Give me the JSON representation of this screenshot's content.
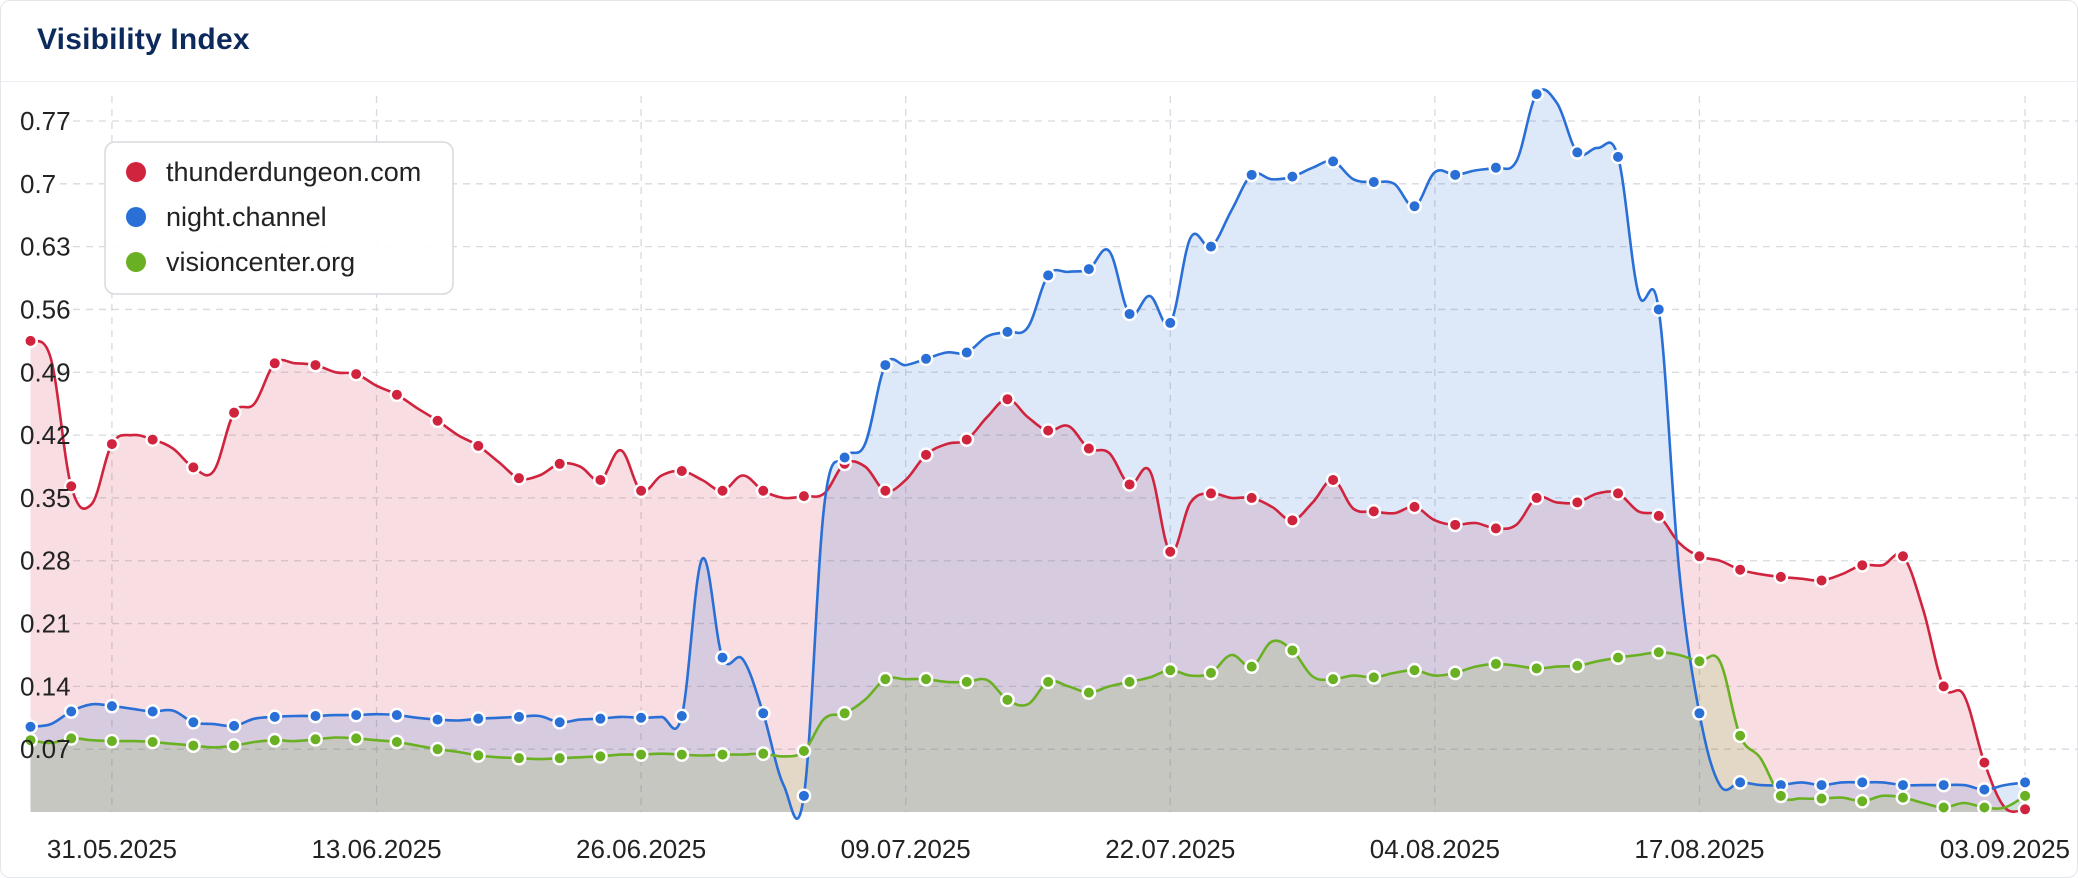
{
  "header": {
    "title": "Visibility Index"
  },
  "chart_data": {
    "type": "area",
    "title": "Visibility Index",
    "x_tick_labels": [
      "31.05.2025",
      "13.06.2025",
      "26.06.2025",
      "09.07.2025",
      "22.07.2025",
      "04.08.2025",
      "17.08.2025",
      "03.09.2025"
    ],
    "x_tick_index": [
      4,
      17,
      30,
      43,
      56,
      69,
      82,
      98
    ],
    "y_tick_labels": [
      "0.07",
      "0.14",
      "0.21",
      "0.28",
      "0.35",
      "0.42",
      "0.49",
      "0.56",
      "0.63",
      "0.7",
      "0.77"
    ],
    "y_ticks": [
      0.07,
      0.14,
      0.21,
      0.28,
      0.35,
      0.42,
      0.49,
      0.56,
      0.63,
      0.7,
      0.77
    ],
    "ylim": [
      0,
      0.77
    ],
    "xlim_index": [
      -1.5,
      100.6
    ],
    "grid": true,
    "legend_position": "top-left",
    "series": [
      {
        "name": "thunderdungeon.com",
        "color": "#d0233e",
        "fill": "rgba(208,35,62,0.15)",
        "values": [
          0.525,
          0.505,
          0.363,
          0.343,
          0.41,
          0.42,
          0.415,
          0.405,
          0.384,
          0.38,
          0.445,
          0.455,
          0.5,
          0.5,
          0.498,
          0.49,
          0.488,
          0.475,
          0.465,
          0.45,
          0.436,
          0.42,
          0.408,
          0.39,
          0.372,
          0.375,
          0.388,
          0.385,
          0.37,
          0.403,
          0.358,
          0.375,
          0.38,
          0.37,
          0.358,
          0.375,
          0.358,
          0.35,
          0.352,
          0.355,
          0.388,
          0.385,
          0.358,
          0.37,
          0.398,
          0.41,
          0.415,
          0.44,
          0.46,
          0.44,
          0.425,
          0.43,
          0.405,
          0.4,
          0.365,
          0.38,
          0.29,
          0.345,
          0.355,
          0.35,
          0.35,
          0.34,
          0.325,
          0.345,
          0.37,
          0.338,
          0.335,
          0.333,
          0.34,
          0.325,
          0.32,
          0.322,
          0.316,
          0.32,
          0.35,
          0.345,
          0.345,
          0.355,
          0.355,
          0.335,
          0.33,
          0.3,
          0.285,
          0.28,
          0.27,
          0.265,
          0.262,
          0.26,
          0.258,
          0.265,
          0.275,
          0.275,
          0.285,
          0.225,
          0.14,
          0.13,
          0.055,
          0.005,
          0.003
        ]
      },
      {
        "name": "night.channel",
        "color": "#2a6fd6",
        "fill": "rgba(42,111,214,0.16)",
        "values": [
          0.095,
          0.098,
          0.112,
          0.12,
          0.118,
          0.115,
          0.112,
          0.113,
          0.1,
          0.098,
          0.096,
          0.104,
          0.106,
          0.107,
          0.107,
          0.108,
          0.108,
          0.109,
          0.108,
          0.105,
          0.103,
          0.102,
          0.104,
          0.105,
          0.106,
          0.107,
          0.1,
          0.103,
          0.104,
          0.106,
          0.105,
          0.106,
          0.107,
          0.282,
          0.172,
          0.17,
          0.11,
          0.03,
          0.018,
          0.342,
          0.395,
          0.41,
          0.498,
          0.498,
          0.505,
          0.512,
          0.512,
          0.53,
          0.535,
          0.54,
          0.598,
          0.602,
          0.605,
          0.625,
          0.555,
          0.575,
          0.545,
          0.64,
          0.63,
          0.67,
          0.71,
          0.705,
          0.708,
          0.718,
          0.725,
          0.705,
          0.702,
          0.7,
          0.675,
          0.713,
          0.71,
          0.715,
          0.718,
          0.725,
          0.8,
          0.79,
          0.735,
          0.74,
          0.73,
          0.578,
          0.56,
          0.27,
          0.11,
          0.03,
          0.033,
          0.03,
          0.03,
          0.033,
          0.03,
          0.033,
          0.033,
          0.033,
          0.03,
          0.03,
          0.03,
          0.03,
          0.025,
          0.03,
          0.033
        ]
      },
      {
        "name": "visioncenter.org",
        "color": "#6ab023",
        "fill": "rgba(106,176,35,0.15)",
        "values": [
          0.08,
          0.077,
          0.082,
          0.08,
          0.079,
          0.079,
          0.078,
          0.076,
          0.074,
          0.072,
          0.074,
          0.078,
          0.08,
          0.079,
          0.081,
          0.083,
          0.082,
          0.08,
          0.078,
          0.074,
          0.07,
          0.067,
          0.063,
          0.061,
          0.06,
          0.059,
          0.06,
          0.061,
          0.062,
          0.064,
          0.064,
          0.065,
          0.064,
          0.063,
          0.064,
          0.064,
          0.065,
          0.062,
          0.068,
          0.104,
          0.11,
          0.125,
          0.148,
          0.148,
          0.148,
          0.145,
          0.145,
          0.147,
          0.125,
          0.12,
          0.145,
          0.14,
          0.133,
          0.14,
          0.145,
          0.15,
          0.158,
          0.152,
          0.155,
          0.175,
          0.162,
          0.19,
          0.18,
          0.151,
          0.148,
          0.152,
          0.15,
          0.155,
          0.158,
          0.152,
          0.155,
          0.162,
          0.165,
          0.163,
          0.16,
          0.162,
          0.163,
          0.168,
          0.172,
          0.175,
          0.178,
          0.175,
          0.168,
          0.168,
          0.085,
          0.06,
          0.018,
          0.015,
          0.015,
          0.016,
          0.012,
          0.018,
          0.016,
          0.01,
          0.005,
          0.01,
          0.005,
          0.005,
          0.018
        ]
      }
    ],
    "markers": {
      "thunderdungeon.com": [
        0,
        2,
        4,
        6,
        8,
        10,
        12,
        14,
        16,
        18,
        20,
        22,
        24,
        26,
        28,
        30,
        32,
        34,
        36,
        38,
        40,
        42,
        44,
        46,
        48,
        50,
        52,
        54,
        56,
        58,
        60,
        62,
        64,
        66,
        68,
        70,
        72,
        74,
        76,
        78,
        80,
        82,
        84,
        86,
        88,
        90,
        92,
        94,
        96,
        98
      ],
      "night.channel": [
        0,
        2,
        4,
        6,
        8,
        10,
        12,
        14,
        16,
        18,
        20,
        22,
        24,
        26,
        28,
        30,
        32,
        34,
        36,
        38,
        40,
        42,
        44,
        46,
        48,
        50,
        52,
        54,
        56,
        58,
        60,
        62,
        64,
        66,
        68,
        70,
        72,
        74,
        76,
        78,
        80,
        82,
        84,
        86,
        88,
        90,
        92,
        94,
        96,
        98
      ],
      "visioncenter.org": [
        0,
        2,
        4,
        6,
        8,
        10,
        12,
        14,
        16,
        18,
        20,
        22,
        24,
        26,
        28,
        30,
        32,
        34,
        36,
        38,
        40,
        42,
        44,
        46,
        48,
        50,
        52,
        54,
        56,
        58,
        60,
        62,
        64,
        66,
        68,
        70,
        72,
        74,
        76,
        78,
        80,
        82,
        84,
        86,
        88,
        90,
        92,
        94,
        96,
        98
      ]
    }
  }
}
